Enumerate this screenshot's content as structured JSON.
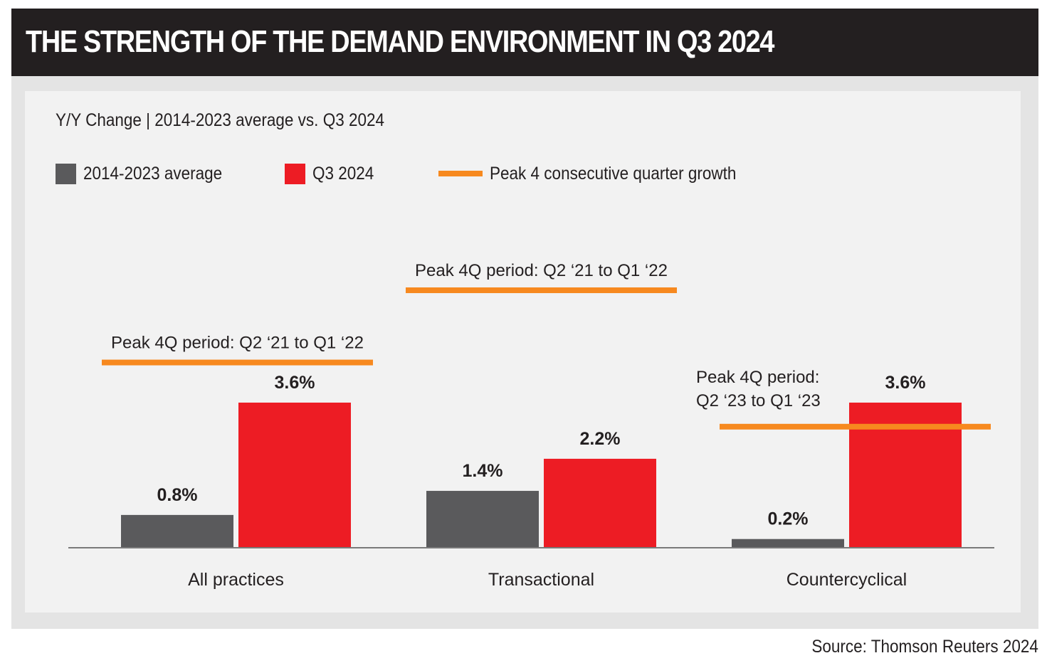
{
  "header": {
    "title": "THE STRENGTH OF THE DEMAND ENVIRONMENT IN Q3 2024"
  },
  "subtitle": "Y/Y Change | 2014-2023 average vs. Q3 2024",
  "legend": [
    {
      "label": "2014-2023 average",
      "type": "box",
      "color": "#5a5a5c"
    },
    {
      "label": "Q3 2024",
      "type": "box",
      "color": "#ed1c24"
    },
    {
      "label": "Peak 4 consecutive quarter growth",
      "type": "line",
      "color": "#f7891f"
    }
  ],
  "source": "Source: Thomson Reuters 2024",
  "chart_data": {
    "type": "bar",
    "title": "THE STRENGTH OF THE DEMAND ENVIRONMENT IN Q3 2024",
    "subtitle": "Y/Y Change | 2014-2023 average vs. Q3 2024",
    "xlabel": "",
    "ylabel": "Y/Y Change (%)",
    "ylim": [
      0,
      7
    ],
    "grid": false,
    "legend_position": "top-left",
    "categories": [
      "All practices",
      "Transactional",
      "Countercyclical"
    ],
    "series": [
      {
        "name": "2014-2023 average",
        "color": "#5a5a5c",
        "values": [
          0.8,
          1.4,
          0.2
        ],
        "labels": [
          "0.8%",
          "1.4%",
          "0.2%"
        ]
      },
      {
        "name": "Q3 2024",
        "color": "#ed1c24",
        "values": [
          3.6,
          2.2,
          3.6
        ],
        "labels": [
          "3.6%",
          "2.2%",
          "3.6%"
        ]
      }
    ],
    "reference_lines": {
      "name": "Peak 4 consecutive quarter growth",
      "color": "#f7891f",
      "values": [
        4.6,
        6.4,
        3.0
      ],
      "annotations": [
        [
          "Peak 4Q period: Q2 ‘21 to Q1 ‘22"
        ],
        [
          "Peak 4Q period: Q2 ‘21 to Q1 ‘22"
        ],
        [
          "Peak 4Q period:",
          "Q2 ‘23 to Q1 ‘23"
        ]
      ]
    }
  }
}
